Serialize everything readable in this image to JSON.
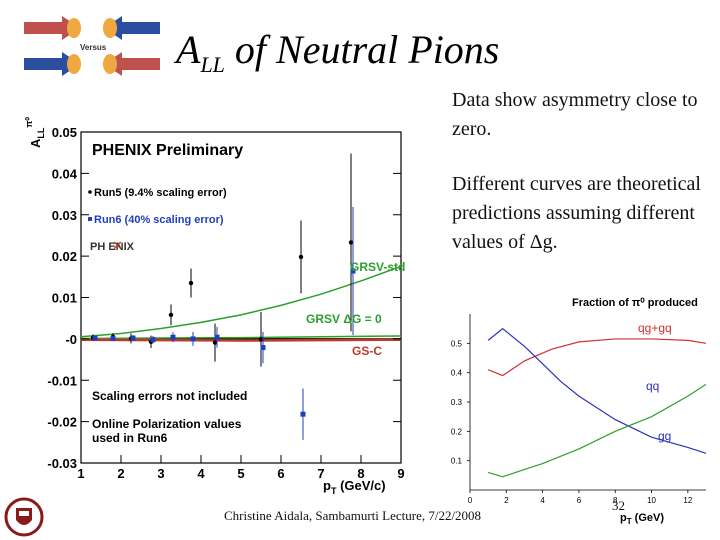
{
  "slide": {
    "title_main": "A",
    "title_sub": "LL",
    "title_rest": " of Neutral Pions",
    "logo_label": "Versus",
    "bullet1": "Data show asymmetry close to zero.",
    "bullet2": "Different curves are theoretical predictions assuming different values of Δg.",
    "footer": "Christine Aidala, Sambamurti Lecture, 7/22/2008",
    "slide_number": "32",
    "colors": {
      "accent_red": "#c0392b",
      "arrow_blue": "#2b4ea0",
      "arrow_orange": "#f0a840"
    }
  },
  "main_plot": {
    "title": "PHENIX Preliminary",
    "legend_run5": "Run5 (9.4% scaling error)",
    "legend_run6": "Run6 (40% scaling error)",
    "logo_text": "PH  ENIX",
    "curve_grsv_std": "GRSV-std",
    "curve_grsv_0": "GRSV ΔG = 0",
    "curve_gsc": "GS-C",
    "note1": "Scaling errors not included",
    "note2": "Online Polarization values",
    "note3": "used in Run6",
    "ylabel": "A",
    "ylabel_sup": "π⁰",
    "ylabel_sub": "LL",
    "xlabel": "p",
    "xlabel_sub": "T",
    "xlabel_unit": " (GeV/c)",
    "ytick_labels": [
      "0.05",
      "0.04",
      "0.03",
      "0.02",
      "0.01",
      "-0",
      "-0.01",
      "-0.02",
      "-0.03"
    ],
    "xtick_labels": [
      "1",
      "2",
      "3",
      "4",
      "5",
      "6",
      "7",
      "8",
      "9"
    ]
  },
  "inset_plot": {
    "title": "Fraction of π⁰ produced",
    "label_qg": "qg+gq",
    "label_qq": "qq",
    "label_gg": "gg",
    "xlabel": "p",
    "xlabel_sub": "T",
    "xlabel_unit": " (GeV)",
    "ytick_labels": [
      "0.5",
      "0.4",
      "0.3",
      "0.2",
      "0.1"
    ],
    "xtick_labels": [
      "0",
      "2",
      "4",
      "6",
      "8",
      "10",
      "12"
    ]
  },
  "chart_data": [
    {
      "type": "scatter",
      "title": "PHENIX Preliminary",
      "xlabel": "pT (GeV/c)",
      "ylabel": "A_LL^π⁰",
      "xlim": [
        1,
        9
      ],
      "ylim": [
        -0.03,
        0.05
      ],
      "series": [
        {
          "name": "Run5 (9.4% scaling error)",
          "color": "#000000",
          "x": [
            1.3,
            1.8,
            2.25,
            2.75,
            3.25,
            3.75,
            4.35,
            5.5,
            6.5,
            7.75
          ],
          "y": [
            0.0003,
            0.0005,
            0.0001,
            -0.0007,
            0.0058,
            0.0135,
            -0.0009,
            -0.0001,
            0.0198,
            0.0233
          ],
          "err": [
            0.0008,
            0.0009,
            0.0012,
            0.0015,
            0.0025,
            0.0035,
            0.0046,
            0.0066,
            0.0088,
            0.0215
          ]
        },
        {
          "name": "Run6 (40% scaling error)",
          "color": "#1f3fbf",
          "x": [
            1.3,
            1.75,
            2.25,
            2.75,
            3.25,
            3.75,
            4.35,
            5.5,
            6.5,
            7.75
          ],
          "y": [
            0.0002,
            0.0001,
            0.0002,
            -0.0002,
            0.0004,
            0.0,
            0.0004,
            -0.0021,
            -0.0182,
            0.0164
          ],
          "err": [
            0.0005,
            0.0006,
            0.0007,
            0.0009,
            0.0012,
            0.0017,
            0.0025,
            0.0038,
            0.0062,
            0.0155
          ]
        }
      ],
      "curves": [
        {
          "name": "GRSV-std",
          "color": "#2ca02c",
          "x": [
            1,
            2,
            3,
            4,
            5,
            6,
            7,
            8,
            9
          ],
          "y": [
            0.0005,
            0.0013,
            0.0025,
            0.004,
            0.0058,
            0.0081,
            0.0108,
            0.014,
            0.0175
          ]
        },
        {
          "name": "GRSV ΔG = 0",
          "color": "#2ca02c",
          "x": [
            1,
            3,
            5,
            7,
            9
          ],
          "y": [
            0.0001,
            0.0002,
            0.0003,
            0.0005,
            0.0007
          ]
        },
        {
          "name": "GS-C",
          "color": "#c0392b",
          "x": [
            1,
            3,
            5,
            7,
            9
          ],
          "y": [
            -0.0002,
            -0.0003,
            -0.0004,
            -0.0003,
            -0.0002
          ]
        }
      ]
    },
    {
      "type": "line",
      "title": "Fraction of π⁰ produced",
      "xlabel": "pT (GeV)",
      "xlim": [
        0,
        13
      ],
      "ylim": [
        0,
        0.6
      ],
      "series": [
        {
          "name": "qg+gq",
          "color": "#d03030",
          "x": [
            1,
            1.8,
            3,
            4.5,
            6,
            8,
            10,
            12,
            13
          ],
          "y": [
            0.41,
            0.39,
            0.44,
            0.48,
            0.505,
            0.515,
            0.515,
            0.51,
            0.5
          ]
        },
        {
          "name": "qq",
          "color": "#3030c0",
          "x": [
            1,
            1.8,
            3,
            4,
            5,
            6,
            8,
            10,
            12,
            13
          ],
          "y": [
            0.51,
            0.55,
            0.49,
            0.43,
            0.37,
            0.32,
            0.24,
            0.18,
            0.145,
            0.125
          ]
        },
        {
          "name": "gg",
          "color": "#2ca02c",
          "x": [
            1,
            1.8,
            3,
            4,
            6,
            8,
            10,
            12,
            13
          ],
          "y": [
            0.06,
            0.045,
            0.07,
            0.09,
            0.14,
            0.2,
            0.25,
            0.32,
            0.36
          ]
        }
      ]
    }
  ]
}
